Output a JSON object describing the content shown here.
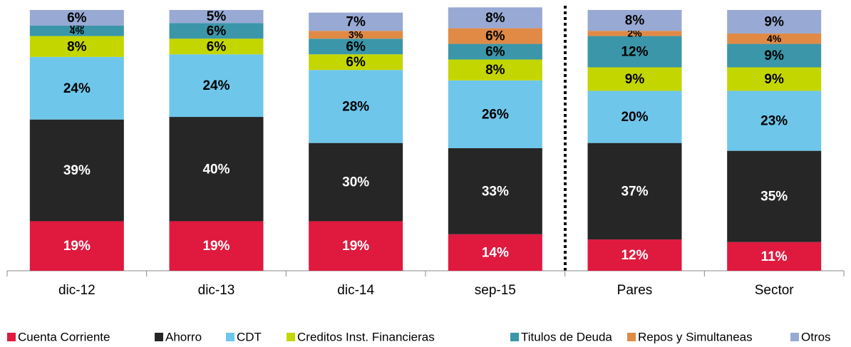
{
  "chart_data": {
    "type": "stacked-bar",
    "categories": [
      "dic-12",
      "dic-13",
      "dic-14",
      "sep-15",
      "Pares",
      "Sector"
    ],
    "series": [
      {
        "name": "Cuenta Corriente",
        "color": "#e0193f",
        "values": [
          19,
          19,
          19,
          14,
          12,
          11
        ],
        "value_labels": [
          "19%",
          "19%",
          "19%",
          "14%",
          "12%",
          "11%"
        ]
      },
      {
        "name": "Ahorro",
        "color": "#262626",
        "values": [
          39,
          40,
          30,
          33,
          37,
          35
        ],
        "value_labels": [
          "39%",
          "40%",
          "30%",
          "33%",
          "37%",
          "35%"
        ]
      },
      {
        "name": "CDT",
        "color": "#6ec6ea",
        "values": [
          24,
          24,
          28,
          26,
          20,
          23
        ],
        "value_labels": [
          "24%",
          "24%",
          "28%",
          "26%",
          "20%",
          "23%"
        ]
      },
      {
        "name": "Creditos Inst. Financieras",
        "color": "#c4d600",
        "values": [
          8,
          6,
          6,
          8,
          9,
          9
        ],
        "value_labels": [
          "8%",
          "6%",
          "6%",
          "8%",
          "9%",
          "9%"
        ]
      },
      {
        "name": "Titulos de Deuda",
        "color": "#3a96a8",
        "values": [
          4,
          6,
          6,
          6,
          12,
          9
        ],
        "value_labels": [
          "4%",
          "6%",
          "6%",
          "6%",
          "12%",
          "9%"
        ]
      },
      {
        "name": "Repos y Simultaneas",
        "color": "#e08a45",
        "values": [
          0,
          0,
          3,
          6,
          2,
          4
        ],
        "value_labels": [
          "0%",
          null,
          "3%",
          "6%",
          "2%",
          "4%"
        ]
      },
      {
        "name": "Otros",
        "color": "#98a9d4",
        "values": [
          6,
          5,
          7,
          8,
          8,
          9
        ],
        "value_labels": [
          "6%",
          "5%",
          "7%",
          "8%",
          "8%",
          "9%"
        ]
      }
    ]
  }
}
